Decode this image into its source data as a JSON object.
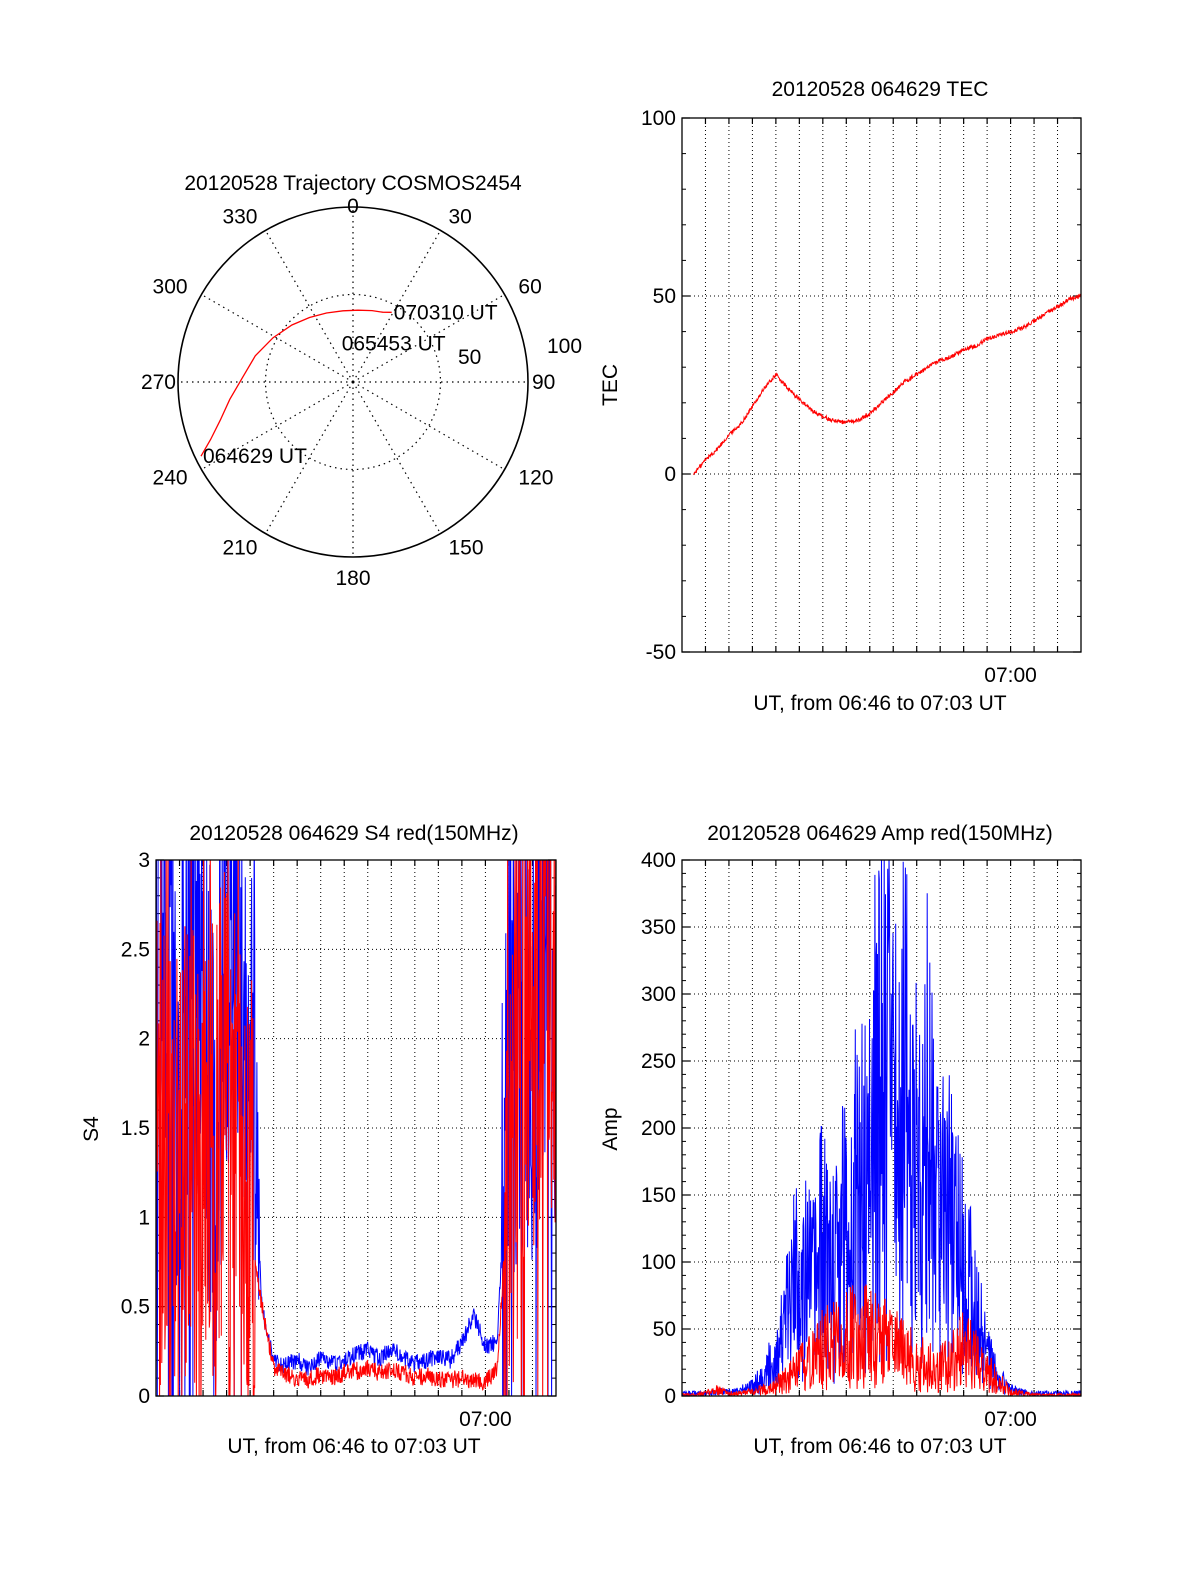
{
  "colors": {
    "red": "#ff0000",
    "blue": "#0000ff",
    "axis": "#000000",
    "grid": "#000000"
  },
  "chart_data": [
    {
      "type": "polar-trajectory",
      "title": "20120528 Trajectory COSMOS2454",
      "azimuth_labels": [
        "0",
        "30",
        "60",
        "90",
        "120",
        "150",
        "180",
        "210",
        "240",
        "270",
        "300",
        "330"
      ],
      "radial_labels": [
        "50",
        "100"
      ],
      "grid": true,
      "series": [
        {
          "color": "#ff0000",
          "points": [
            {
              "az": 244,
              "el": 3
            },
            {
              "az": 248,
              "el": 11
            },
            {
              "az": 254,
              "el": 19
            },
            {
              "az": 262,
              "el": 26
            },
            {
              "az": 272,
              "el": 33
            },
            {
              "az": 285,
              "el": 38
            },
            {
              "az": 299,
              "el": 43
            },
            {
              "az": 313,
              "el": 47
            },
            {
              "az": 326,
              "el": 50
            },
            {
              "az": 339,
              "el": 52
            },
            {
              "az": 352,
              "el": 53
            },
            {
              "az": 4,
              "el": 53
            },
            {
              "az": 15,
              "el": 52
            },
            {
              "az": 23,
              "el": 51
            },
            {
              "az": 29,
              "el": 49
            }
          ]
        }
      ],
      "annotations": [
        {
          "text": "070310 UT",
          "az": 29,
          "el": 49
        },
        {
          "text": "065453 UT",
          "az": 341,
          "el": 69
        },
        {
          "text": "064629 UT",
          "az": 244,
          "el": 3
        }
      ]
    },
    {
      "type": "line",
      "title": "20120528 064629 TEC",
      "xlabel": "UT, from 06:46 to 07:03 UT",
      "ylabel": "TEC",
      "xlim": [
        0,
        17
      ],
      "ylim": [
        -50,
        100
      ],
      "x_tick_labels": [
        {
          "x": 14,
          "label": "07:00"
        }
      ],
      "y_ticks": [
        -50,
        0,
        50,
        100
      ],
      "grid": true,
      "series": [
        {
          "color": "#ff0000",
          "x": [
            0.5,
            1,
            1.5,
            2,
            2.5,
            3,
            3.5,
            4,
            4.5,
            5,
            5.5,
            6,
            6.5,
            7,
            7.5,
            8,
            8.5,
            9,
            9.5,
            10,
            10.5,
            11,
            11.5,
            12,
            12.5,
            13,
            13.5,
            14,
            14.5,
            15,
            15.5,
            16,
            16.5,
            17
          ],
          "y": [
            0,
            4,
            7,
            11,
            14,
            19,
            24,
            28,
            24,
            21,
            18,
            16,
            15,
            14.5,
            15,
            17,
            20,
            23,
            26,
            28,
            30,
            32,
            33,
            35,
            36,
            38,
            39,
            40,
            41,
            43,
            45,
            47,
            49,
            50
          ]
        }
      ]
    },
    {
      "type": "line",
      "title": "20120528 064629 S4 red(150MHz)",
      "xlabel": "UT, from 06:46 to 07:03 UT",
      "ylabel": "S4",
      "xlim": [
        0,
        17
      ],
      "ylim": [
        0,
        3
      ],
      "x_tick_labels": [
        {
          "x": 14,
          "label": "07:00"
        }
      ],
      "y_ticks": [
        0,
        0.5,
        1,
        1.5,
        2,
        2.5,
        3
      ],
      "grid": true,
      "series": [
        {
          "color": "#0000ff",
          "x": [
            0,
            0.5,
            1,
            1.5,
            2,
            2.5,
            3,
            3.5,
            4,
            4.5,
            5,
            5.5,
            6,
            6.5,
            7,
            7.5,
            8,
            8.5,
            9,
            9.5,
            10,
            10.5,
            11,
            11.5,
            12,
            12.5,
            13,
            13.5,
            14,
            14.5,
            15,
            15.5,
            16,
            16.5,
            17
          ],
          "y": [
            2.4,
            2.8,
            1.6,
            2.9,
            2.2,
            1.4,
            2.7,
            2.6,
            1.8,
            0.5,
            0.2,
            0.17,
            0.2,
            0.15,
            0.22,
            0.18,
            0.2,
            0.23,
            0.26,
            0.2,
            0.27,
            0.22,
            0.18,
            0.2,
            0.22,
            0.2,
            0.3,
            0.45,
            0.28,
            0.3,
            1.6,
            2.4,
            2.0,
            2.6,
            2.2
          ]
        },
        {
          "color": "#ff0000",
          "x": [
            0,
            0.5,
            1,
            1.5,
            2,
            2.5,
            3,
            3.5,
            4,
            4.5,
            5,
            5.5,
            6,
            6.5,
            7,
            7.5,
            8,
            8.5,
            9,
            9.5,
            10,
            10.5,
            11,
            11.5,
            12,
            12.5,
            13,
            13.5,
            14,
            14.5,
            15,
            15.5,
            16,
            16.5,
            17
          ],
          "y": [
            1.5,
            1.1,
            1.2,
            1.4,
            1.0,
            1.5,
            1.6,
            1.3,
            1.0,
            0.5,
            0.15,
            0.12,
            0.1,
            0.09,
            0.12,
            0.1,
            0.13,
            0.14,
            0.16,
            0.13,
            0.15,
            0.13,
            0.1,
            0.11,
            0.1,
            0.09,
            0.1,
            0.09,
            0.08,
            0.15,
            1.2,
            1.8,
            2.2,
            2.4,
            2.0
          ]
        }
      ]
    },
    {
      "type": "line",
      "title": "20120528 064629 Amp red(150MHz)",
      "xlabel": "UT, from 06:46 to 07:03 UT",
      "ylabel": "Amp",
      "xlim": [
        0,
        17
      ],
      "ylim": [
        0,
        400
      ],
      "x_tick_labels": [
        {
          "x": 14,
          "label": "07:00"
        }
      ],
      "y_ticks": [
        0,
        50,
        100,
        150,
        200,
        250,
        300,
        350,
        400
      ],
      "grid": true,
      "series": [
        {
          "color": "#0000ff",
          "x": [
            0,
            0.5,
            1,
            1.5,
            2,
            2.5,
            3,
            3.5,
            4,
            4.5,
            5,
            5.5,
            6,
            6.5,
            7,
            7.5,
            8,
            8.5,
            9,
            9.5,
            10,
            10.5,
            11,
            11.5,
            12,
            12.5,
            13,
            13.5,
            14,
            14.5,
            15,
            15.5,
            16,
            16.5,
            17
          ],
          "y": [
            2,
            2,
            2,
            3,
            3,
            4,
            8,
            15,
            30,
            60,
            100,
            80,
            110,
            90,
            130,
            150,
            180,
            250,
            200,
            230,
            160,
            210,
            150,
            130,
            90,
            70,
            30,
            12,
            5,
            3,
            2,
            2,
            2,
            2,
            2
          ]
        },
        {
          "color": "#ff0000",
          "x": [
            0,
            0.5,
            1,
            1.5,
            2,
            2.5,
            3,
            3.5,
            4,
            4.5,
            5,
            5.5,
            6,
            6.5,
            7,
            7.5,
            8,
            8.5,
            9,
            9.5,
            10,
            10.5,
            11,
            11.5,
            12,
            12.5,
            13,
            13.5,
            14,
            14.5,
            15,
            15.5,
            16,
            16.5,
            17
          ],
          "y": [
            1,
            1,
            2,
            5,
            2,
            2,
            3,
            5,
            8,
            12,
            20,
            25,
            35,
            38,
            45,
            50,
            42,
            40,
            35,
            30,
            25,
            22,
            20,
            25,
            35,
            28,
            18,
            10,
            4,
            2,
            1,
            1,
            1,
            1,
            1
          ]
        }
      ]
    }
  ]
}
